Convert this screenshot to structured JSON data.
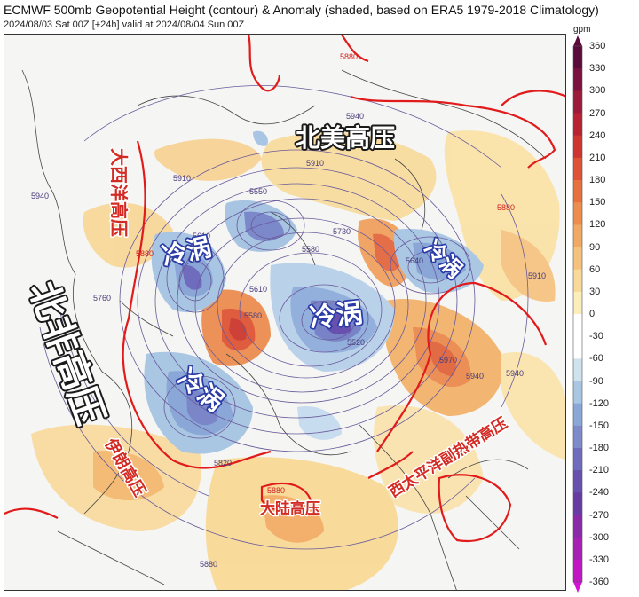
{
  "header": {
    "title": "ECMWF 500mb Geopotential Height (contour) & Anomaly (shaded, based on ERA5 1979-2018 Climatology)",
    "subtitle": "2024/08/03 Sat 00Z [+24h] valid at 2024/08/04 Sun 00Z"
  },
  "colorbar": {
    "unit": "gpm",
    "ticks": [
      "360",
      "330",
      "300",
      "270",
      "240",
      "210",
      "180",
      "150",
      "120",
      "90",
      "60",
      "30",
      "0",
      "-30",
      "-60",
      "-90",
      "-120",
      "-150",
      "-180",
      "-210",
      "-240",
      "-270",
      "-300",
      "-330",
      "-360"
    ],
    "colors": [
      "#5b0a3c",
      "#7a1240",
      "#9c1a3a",
      "#b82233",
      "#cf3530",
      "#de5335",
      "#e6703e",
      "#ec8c4d",
      "#f1a862",
      "#f5c27c",
      "#f8d998",
      "#fbeeb9",
      "#ffffff",
      "#ffffff",
      "#cfe3ef",
      "#a9c7e3",
      "#8aa7d7",
      "#7d8bcb",
      "#6f6cbd",
      "#6750ae",
      "#6a3aa4",
      "#8a2aa8",
      "#a620b3",
      "#c116c4",
      "#d60fd8"
    ]
  },
  "map": {
    "labels": {
      "north_america_high": "北美高压",
      "atlantic_high": "大西洋高压",
      "north_africa_high": "北非高压",
      "iran_high": "伊朗高压",
      "continental_high": "大陆高压",
      "pacific_subtropical_high": "西太平洋副热带高压",
      "cold_vortex_1": "冷涡",
      "cold_vortex_2": "冷涡",
      "cold_vortex_3": "冷涡",
      "cold_vortex_4": "冷涡"
    },
    "contour_values": [
      "5880",
      "5940",
      "5910",
      "5880",
      "5940",
      "5910",
      "5610",
      "5550",
      "5580",
      "5610",
      "5730",
      "5580",
      "5520",
      "5640",
      "5970",
      "5940",
      "5910",
      "5880",
      "5820",
      "5760",
      "5880",
      "5880",
      "5940"
    ]
  }
}
